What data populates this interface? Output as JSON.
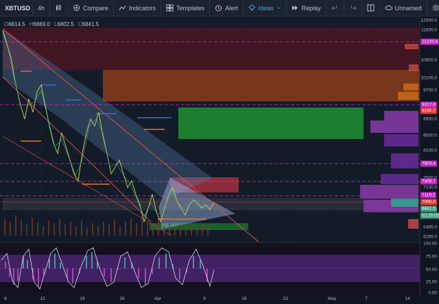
{
  "toolbar": {
    "symbol": "XBTUSD",
    "interval": "4h",
    "compare": "Compare",
    "indicators": "Indicators",
    "templates": "Templates",
    "alert": "Alert",
    "ideas": "Ideas",
    "replay": "Replay",
    "layout": "Unnamed",
    "colors": {
      "accent": "#3bb3e4"
    }
  },
  "ohlc": {
    "open_label": "O",
    "open": "6814.5",
    "high_label": "H",
    "high": "6869.0",
    "low_label": "L",
    "low": "6802.5",
    "close_label": "C",
    "close": "6841.5"
  },
  "price_axis": {
    "ticks": [
      "12000.0",
      "11600.0",
      "10600.0",
      "10100.0",
      "9700.0",
      "8900.0",
      "8500.0",
      "8100.0",
      "7500.0",
      "7100.0",
      "6485.0",
      "6285.0"
    ]
  },
  "price_tags": [
    {
      "text": "11225.4",
      "color": "#c223c2"
    },
    {
      "text": "9317.9",
      "color": "#c223c2"
    },
    {
      "text": "9290.2",
      "color": "#e03535"
    },
    {
      "text": "7803.4",
      "color": "#c223c2"
    },
    {
      "text": "7409.7",
      "color": "#c223c2"
    },
    {
      "text": "7119.2",
      "color": "#c223c2"
    },
    {
      "text": "7090.0",
      "color": "#e03535"
    },
    {
      "text": "6841.5",
      "color": "#3a9b7a"
    },
    {
      "text": "02:25:02",
      "color": "#3a9b7a"
    }
  ],
  "osc_axis": {
    "ticks": [
      "100.00",
      "75.00",
      "50.00",
      "25.00",
      "0.00"
    ]
  },
  "date_axis": {
    "ticks": [
      "6",
      "12",
      "19",
      "26",
      "Apr",
      "9",
      "16",
      "23",
      "May",
      "7",
      "14"
    ]
  }
}
